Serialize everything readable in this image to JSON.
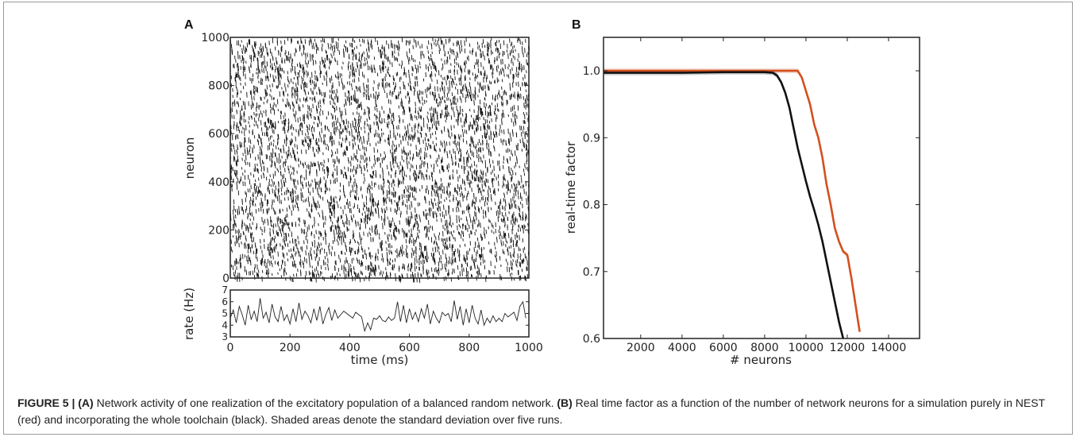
{
  "chart_data": [
    {
      "panel": "A",
      "type": "scatter",
      "subtype": "raster",
      "xlabel": "",
      "ylabel": "neuron",
      "xlim": [
        0,
        1000
      ],
      "ylim": [
        0,
        1000
      ],
      "yticks": [
        0,
        200,
        400,
        600,
        800,
        1000
      ],
      "xticks_shown": false,
      "description_values": {
        "neurons": 1000,
        "duration_ms": 1000,
        "mean_rate_hz": 5
      }
    },
    {
      "panel": "A-rate",
      "type": "line",
      "xlabel": "time (ms)",
      "ylabel": "rate (Hz)",
      "xlim": [
        0,
        1000
      ],
      "ylim": [
        3,
        7
      ],
      "xticks": [
        0,
        200,
        400,
        600,
        800,
        1000
      ],
      "yticks": [
        3,
        4,
        5,
        6,
        7
      ],
      "x_step": 10,
      "values": [
        4.6,
        5.3,
        4.2,
        5.6,
        4.9,
        4.0,
        5.7,
        4.5,
        5.2,
        4.3,
        6.3,
        4.6,
        5.1,
        4.2,
        5.8,
        4.7,
        4.3,
        5.6,
        4.4,
        4.9,
        4.1,
        5.4,
        4.3,
        5.9,
        4.5,
        5.2,
        4.8,
        4.2,
        5.4,
        4.4,
        5.6,
        4.1,
        4.9,
        5.5,
        4.4,
        5.3,
        4.6,
        4.9,
        5.2,
        5.0,
        4.8,
        4.6,
        5.1,
        4.9,
        4.7,
        3.5,
        4.2,
        3.6,
        4.6,
        4.5,
        4.8,
        4.4,
        4.3,
        4.7,
        4.4,
        4.6,
        6.0,
        4.3,
        5.7,
        4.2,
        5.4,
        4.5,
        5.1,
        4.3,
        5.4,
        4.6,
        5.8,
        4.1,
        5.2,
        4.6,
        4.2,
        5.1,
        4.8,
        5.0,
        4.3,
        6.1,
        4.5,
        5.6,
        4.0,
        5.4,
        4.2,
        5.7,
        4.6,
        4.1,
        5.3,
        4.0,
        4.6,
        4.2,
        4.8,
        4.3,
        4.6,
        4.3,
        5.0,
        4.7,
        4.9,
        5.1,
        4.4,
        5.6,
        6.0,
        4.6
      ]
    },
    {
      "panel": "B",
      "type": "line",
      "xlabel": "# neurons",
      "ylabel": "real-time factor",
      "xlim": [
        200,
        15500
      ],
      "ylim": [
        0.6,
        1.05
      ],
      "xticks": [
        2000,
        4000,
        6000,
        8000,
        10000,
        12000,
        14000
      ],
      "yticks": [
        0.6,
        0.7,
        0.8,
        0.9,
        1.0
      ],
      "series": [
        {
          "color": "#d2501e",
          "x": [
            200,
            2000,
            4000,
            6000,
            8000,
            9000,
            9400,
            9600,
            9800,
            10000,
            10200,
            10400,
            10600,
            10800,
            11000,
            11200,
            11400,
            11600,
            11800,
            12000,
            12200,
            12400,
            12600
          ],
          "y": [
            1.0,
            1.0,
            1.0,
            1.0,
            1.0,
            1.0,
            1.0,
            1.0,
            0.99,
            0.97,
            0.95,
            0.92,
            0.9,
            0.87,
            0.83,
            0.8,
            0.765,
            0.745,
            0.73,
            0.725,
            0.69,
            0.65,
            0.61
          ]
        },
        {
          "color": "#111111",
          "x": [
            200,
            2000,
            4000,
            6000,
            8000,
            8400,
            8600,
            8800,
            9000,
            9200,
            9400,
            9600,
            9800,
            10000,
            10200,
            10400,
            10600,
            10800,
            11000,
            11200,
            11400,
            11600,
            11800
          ],
          "y": [
            0.997,
            0.997,
            0.997,
            0.998,
            0.998,
            0.997,
            0.993,
            0.983,
            0.967,
            0.945,
            0.915,
            0.885,
            0.86,
            0.835,
            0.812,
            0.792,
            0.77,
            0.745,
            0.715,
            0.685,
            0.655,
            0.625,
            0.6
          ]
        }
      ]
    }
  ],
  "labels": {
    "panel_a": "A",
    "panel_b": "B",
    "raster_ylabel": "neuron",
    "rate_ylabel": "rate (Hz)",
    "rate_xlabel": "time (ms)",
    "b_xlabel": "# neurons",
    "b_ylabel": "real-time factor"
  },
  "caption": {
    "figure_label": "FIGURE 5 | ",
    "a_tag": "(A)",
    "a_text": " Network activity of one realization of the excitatory population of a balanced random network. ",
    "b_tag": "(B)",
    "b_text": " Real time factor as a function of the number of network neurons for a simulation purely in NEST (red) and incorporating the whole toolchain (black). Shaded areas denote the standard deviation over five runs."
  }
}
